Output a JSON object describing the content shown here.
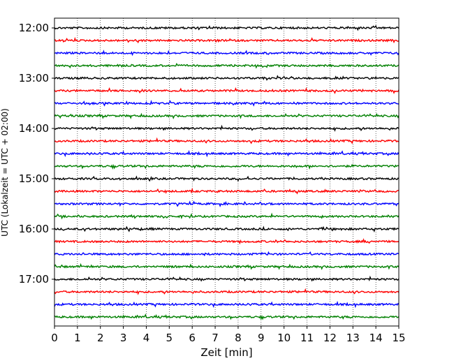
{
  "chart_data": {
    "type": "line",
    "title": "",
    "xlabel": "Zeit  [min]",
    "ylabel": "UTC (Lokalzeit = UTC + 02:00)",
    "xlim": [
      0,
      15
    ],
    "x_ticks": [
      "0",
      "1",
      "2",
      "3",
      "4",
      "5",
      "6",
      "7",
      "8",
      "9",
      "10",
      "11",
      "12",
      "13",
      "14",
      "15"
    ],
    "y_ticks": [
      "12:00",
      "13:00",
      "14:00",
      "15:00",
      "16:00",
      "17:00"
    ],
    "grid": "vertical-dotted",
    "legend": "none",
    "trace_interval_minutes": 15,
    "trace_colors": [
      "#000000",
      "#ff0000",
      "#0000ff",
      "#008000"
    ],
    "series": [
      {
        "start": "12:00",
        "color": "#000000"
      },
      {
        "start": "12:15",
        "color": "#ff0000"
      },
      {
        "start": "12:30",
        "color": "#0000ff"
      },
      {
        "start": "12:45",
        "color": "#008000"
      },
      {
        "start": "13:00",
        "color": "#000000"
      },
      {
        "start": "13:15",
        "color": "#ff0000"
      },
      {
        "start": "13:30",
        "color": "#0000ff"
      },
      {
        "start": "13:45",
        "color": "#008000"
      },
      {
        "start": "14:00",
        "color": "#000000"
      },
      {
        "start": "14:15",
        "color": "#ff0000"
      },
      {
        "start": "14:30",
        "color": "#0000ff"
      },
      {
        "start": "14:45",
        "color": "#008000"
      },
      {
        "start": "15:00",
        "color": "#000000"
      },
      {
        "start": "15:15",
        "color": "#ff0000"
      },
      {
        "start": "15:30",
        "color": "#0000ff"
      },
      {
        "start": "15:45",
        "color": "#008000"
      },
      {
        "start": "16:00",
        "color": "#000000"
      },
      {
        "start": "16:15",
        "color": "#ff0000"
      },
      {
        "start": "16:30",
        "color": "#0000ff"
      },
      {
        "start": "16:45",
        "color": "#008000"
      },
      {
        "start": "17:00",
        "color": "#000000"
      },
      {
        "start": "17:15",
        "color": "#ff0000"
      },
      {
        "start": "17:30",
        "color": "#0000ff"
      },
      {
        "start": "17:45",
        "color": "#008000"
      }
    ]
  }
}
